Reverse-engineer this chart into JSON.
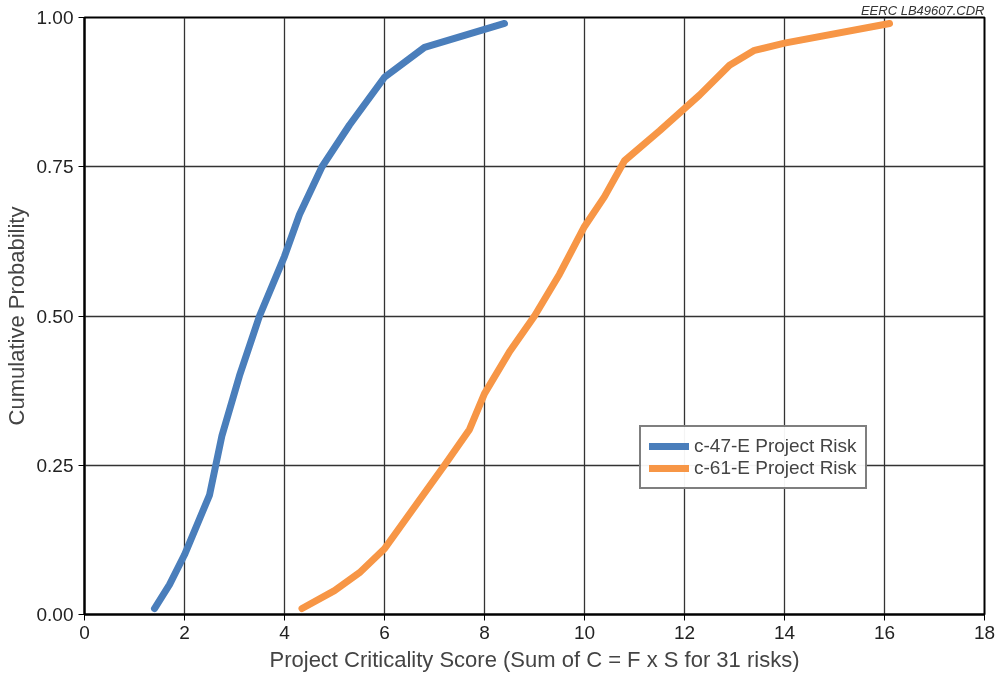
{
  "chart_data": {
    "type": "line",
    "xlabel": "Project Criticality Score (Sum of C = F x S for 31 risks)",
    "ylabel": "Cumulative Probability",
    "annotations": [
      "EERC LB49607.CDR"
    ],
    "xlim": [
      0,
      18
    ],
    "xticks": [
      0,
      2,
      4,
      6,
      8,
      10,
      12,
      14,
      16,
      18
    ],
    "ylim": [
      0,
      1
    ],
    "yticks": [
      {
        "value": 0,
        "label": "0.00"
      },
      {
        "value": 0.25,
        "label": "0.25"
      },
      {
        "value": 0.5,
        "label": "0.50"
      },
      {
        "value": 0.75,
        "label": "0.75"
      },
      {
        "value": 1,
        "label": "1.00"
      }
    ],
    "grid": true,
    "legend": "right",
    "marker": "none",
    "line_style": "solid",
    "series": [
      {
        "name": "c-47-E Project Risk",
        "color": "#4a7ebb",
        "x": [
          1.4,
          1.7,
          2.0,
          2.5,
          2.75,
          3.1,
          3.5,
          4.0,
          4.3,
          4.75,
          5.3,
          6.0,
          6.8,
          8.4
        ],
        "values": [
          0.01,
          0.05,
          0.1,
          0.2,
          0.3,
          0.4,
          0.5,
          0.6,
          0.67,
          0.75,
          0.82,
          0.9,
          0.95,
          0.99
        ]
      },
      {
        "name": "c-61-E Project Risk",
        "color": "#f79646",
        "x": [
          4.35,
          5.0,
          5.5,
          6.0,
          6.6,
          7.2,
          7.7,
          8.0,
          8.5,
          9.0,
          9.5,
          10.0,
          10.4,
          10.8,
          11.5,
          12.3,
          12.9,
          13.4,
          14.0,
          16.1
        ],
        "values": [
          0.01,
          0.04,
          0.07,
          0.11,
          0.18,
          0.25,
          0.31,
          0.37,
          0.44,
          0.5,
          0.57,
          0.65,
          0.7,
          0.76,
          0.81,
          0.87,
          0.92,
          0.945,
          0.957,
          0.99
        ]
      }
    ]
  }
}
